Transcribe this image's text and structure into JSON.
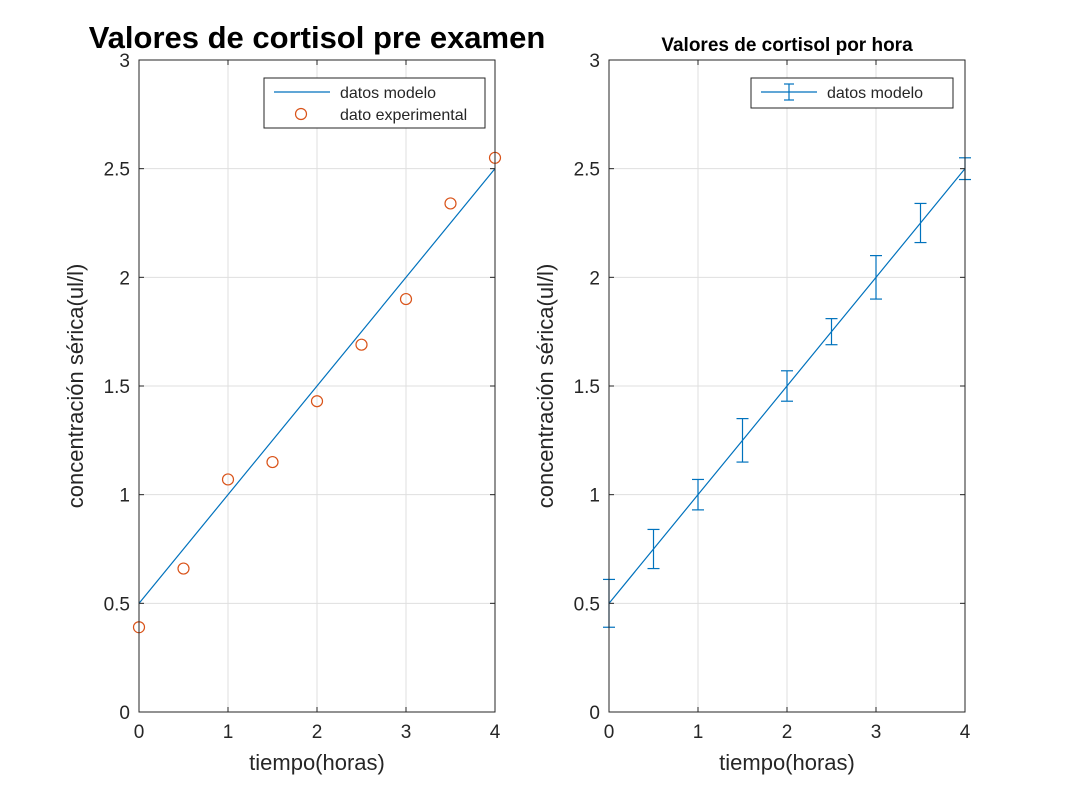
{
  "chart_data": [
    {
      "type": "line",
      "title": "Valores de cortisol pre examen",
      "xlabel": "tiempo(horas)",
      "ylabel": "concentración sérica(ul/l)",
      "xlim": [
        0,
        4
      ],
      "ylim": [
        0,
        3
      ],
      "xticks": [
        "0",
        "1",
        "2",
        "3",
        "4"
      ],
      "yticks": [
        "0",
        "0.5",
        "1",
        "1.5",
        "2",
        "2.5",
        "3"
      ],
      "grid": true,
      "legend_position": "top-right",
      "series": [
        {
          "name": "datos modelo",
          "kind": "line",
          "color": "#0072BD",
          "x": [
            0,
            4
          ],
          "y": [
            0.5,
            2.5
          ]
        },
        {
          "name": "dato experimental",
          "kind": "scatter",
          "marker": "circle",
          "color": "#D95319",
          "x": [
            0,
            0.5,
            1,
            1.5,
            2,
            2.5,
            3,
            3.5,
            4
          ],
          "y": [
            0.39,
            0.66,
            1.07,
            1.15,
            1.43,
            1.69,
            1.9,
            2.34,
            2.55
          ]
        }
      ]
    },
    {
      "type": "line",
      "title": "Valores de cortisol por hora",
      "xlabel": "tiempo(horas)",
      "ylabel": "concentración sérica(ul/l)",
      "xlim": [
        0,
        4
      ],
      "ylim": [
        0,
        3
      ],
      "xticks": [
        "0",
        "1",
        "2",
        "3",
        "4"
      ],
      "yticks": [
        "0",
        "0.5",
        "1",
        "1.5",
        "2",
        "2.5",
        "3"
      ],
      "grid": true,
      "legend_position": "top-right",
      "series": [
        {
          "name": "datos modelo",
          "kind": "errorbar",
          "color": "#0072BD",
          "x": [
            0,
            0.5,
            1,
            1.5,
            2,
            2.5,
            3,
            3.5,
            4
          ],
          "y": [
            0.5,
            0.75,
            1.0,
            1.25,
            1.5,
            1.75,
            2.0,
            2.25,
            2.5
          ],
          "err": [
            0.11,
            0.09,
            0.07,
            0.1,
            0.07,
            0.06,
            0.1,
            0.09,
            0.05
          ]
        }
      ]
    }
  ]
}
